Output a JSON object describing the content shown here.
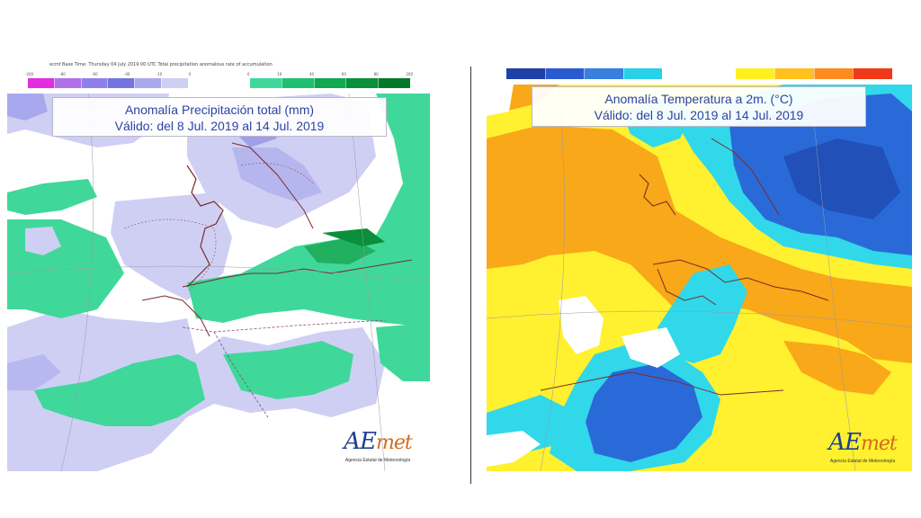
{
  "precip_panel": {
    "header_text": "ecmf Base Time: Thursday 04 July 2019 00 UTC Total precipitation anomalous rate of accumulation",
    "title_line1": "Anomalía Precipitación total (mm)",
    "title_line2": "Válido: del 8 Jul. 2019 al 14 Jul. 2019",
    "scale_dry_ticks": [
      "-200",
      "-80",
      "-60",
      "-40",
      "-10",
      "0"
    ],
    "scale_wet_ticks": [
      "0",
      "10",
      "40",
      "60",
      "80",
      "200"
    ],
    "scale_dry_colors": [
      "#e22ee0",
      "#b070e8",
      "#8e80ea",
      "#7474e0",
      "#a8a8ee",
      "#cfcff4"
    ],
    "scale_wet_colors": [
      "#3fd89a",
      "#20c070",
      "#10a850",
      "#0a8f3a",
      "#047828"
    ],
    "logo_text": "AEmet",
    "logo_subtitle": "Agencia Estatal de Meteorología"
  },
  "temp_panel": {
    "title_line1": "Anomalía Temperatura a 2m. (°C)",
    "title_line2": "Válido: del 8 Jul. 2019 al 14 Jul. 2019",
    "scale_cold_colors": [
      "#2040a8",
      "#2a5ad0",
      "#3a7ee0",
      "#28d0e8"
    ],
    "scale_warm_colors": [
      "#fff020",
      "#ffc020",
      "#ff8a20",
      "#ee3a18"
    ],
    "logo_text": "AEmet",
    "logo_subtitle": "Agencia Estatal de Meteorología"
  }
}
